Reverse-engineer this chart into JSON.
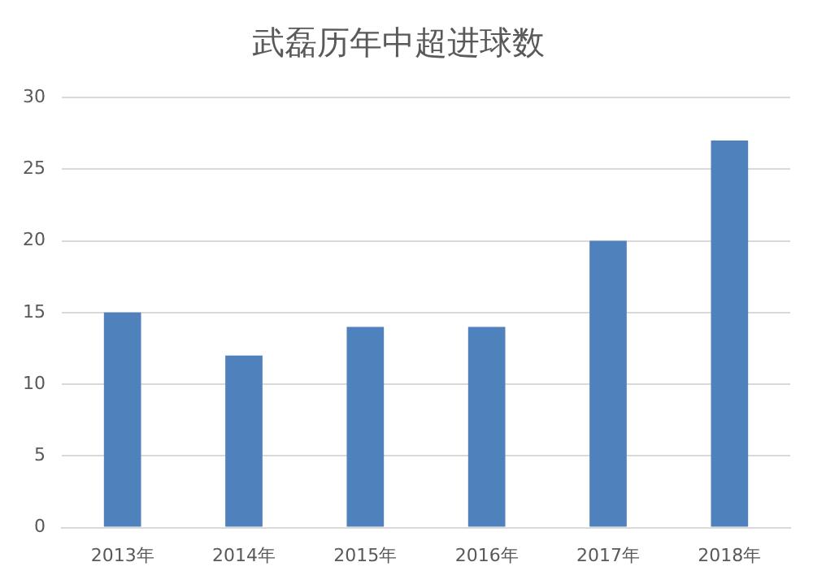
{
  "chart_data": {
    "type": "bar",
    "title": "武磊历年中超进球数",
    "categories": [
      "2013年",
      "2014年",
      "2015年",
      "2016年",
      "2017年",
      "2018年"
    ],
    "values": [
      15,
      12,
      14,
      14,
      20,
      27
    ],
    "color": "#4f81bd",
    "ylim": [
      0,
      30
    ],
    "yticks": [
      0,
      5,
      10,
      15,
      20,
      25,
      30
    ],
    "grid": "y",
    "legend": false
  }
}
